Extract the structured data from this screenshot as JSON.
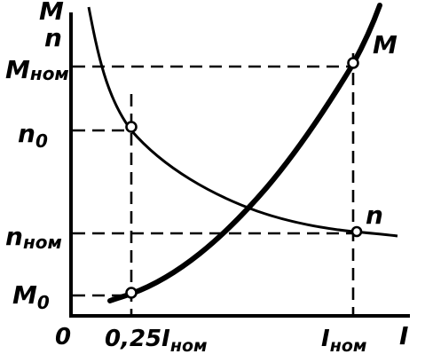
{
  "diagram": {
    "y_axis_label_top": "M",
    "y_axis_label_bottom": "n",
    "x_axis_label": "I",
    "origin_label": "0",
    "y_ticks": {
      "m_nom": {
        "main": "M",
        "sub": "ном"
      },
      "n0": {
        "main": "n",
        "sub": "0"
      },
      "n_nom": {
        "main": "n",
        "sub": "ном"
      },
      "m0": {
        "main": "M",
        "sub": "0"
      }
    },
    "x_ticks": {
      "quarter": {
        "main": "0,25I",
        "sub": "ном"
      },
      "nominal": {
        "main": "I",
        "sub": "ном"
      }
    },
    "curve_labels": {
      "m_curve": "M",
      "n_curve": "n"
    }
  }
}
